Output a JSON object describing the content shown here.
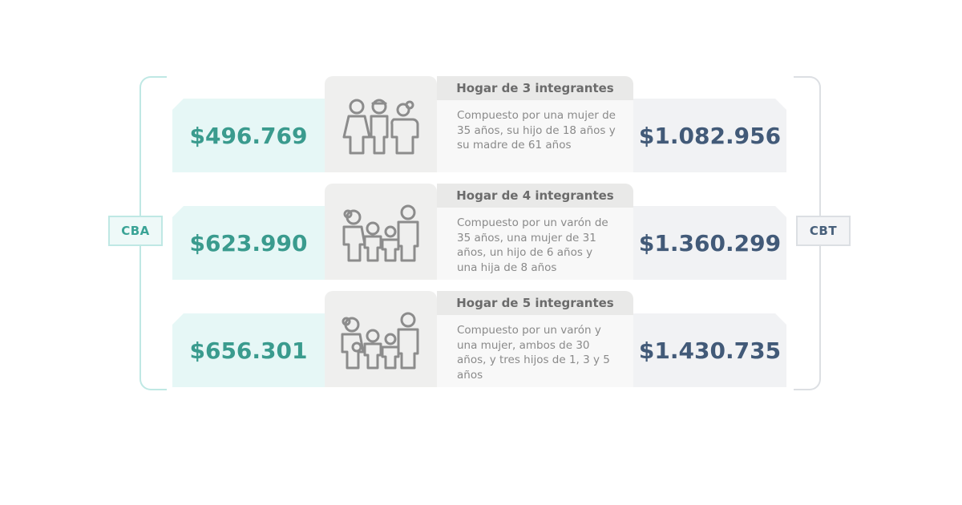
{
  "labels": {
    "left": "CBA",
    "right": "CBT"
  },
  "households": [
    {
      "title": "Hogar de 3 integrantes",
      "description": "Compuesto por una mujer de 35 años, su hijo de 18 años y su madre de 61 años",
      "cba": "$496.769",
      "cbt": "$1.082.956",
      "icon": "family-of-3-icon"
    },
    {
      "title": "Hogar de 4 integrantes",
      "description": "Compuesto por un varón de 35 años, una mujer de 31 años, un hijo de 6 años y una hija de 8 años",
      "cba": "$623.990",
      "cbt": "$1.360.299",
      "icon": "family-of-4-icon"
    },
    {
      "title": "Hogar de 5 integrantes",
      "description": "Compuesto por un varón y una mujer, ambos de 30 años, y tres hijos de 1, 3 y 5 años",
      "cba": "$656.301",
      "cbt": "$1.430.735",
      "icon": "family-of-5-icon"
    }
  ],
  "colors": {
    "cba_bg": "#e6f7f6",
    "cba_text": "#3a9b8e",
    "cbt_bg": "#f1f2f4",
    "cbt_text": "#425a78",
    "icon_stroke": "#8c8c8c"
  }
}
